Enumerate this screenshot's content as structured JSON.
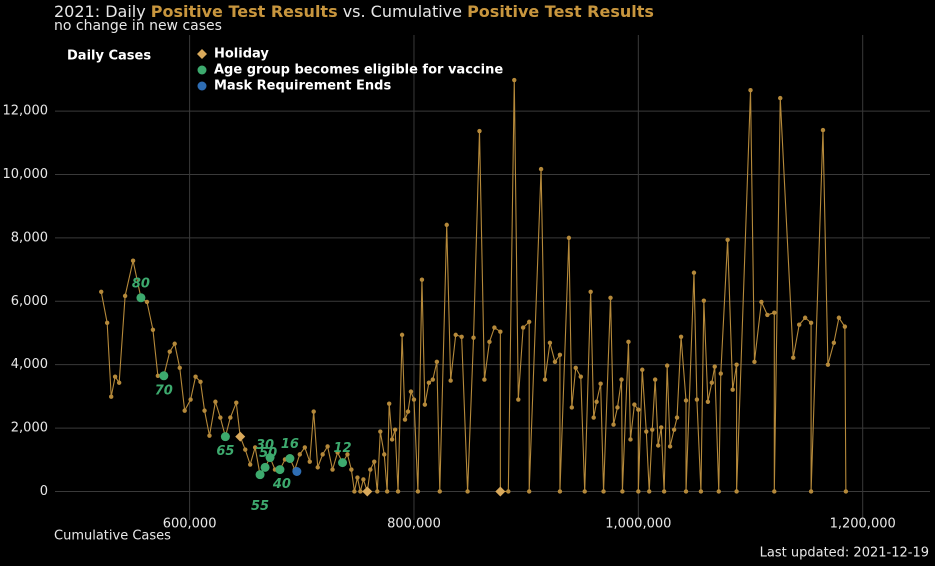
{
  "chart_data": {
    "type": "line",
    "title_parts": [
      "2021: Daily ",
      "Positive Test Results",
      " vs. Cumulative ",
      "Positive Test Results"
    ],
    "title_highlight_color": "#c8963e",
    "subtitle": "no change in new cases",
    "x_label": "Cumulative Cases",
    "footer": "Last updated: 2021-12-19",
    "xlim": [
      480000,
      1260000
    ],
    "ylim": [
      -900,
      14400
    ],
    "xticks": [
      {
        "value": 600000,
        "label": "600,000"
      },
      {
        "value": 800000,
        "label": "800,000"
      },
      {
        "value": 1000000,
        "label": "1,000,000"
      },
      {
        "value": 1200000,
        "label": "1,200,000"
      }
    ],
    "yticks": [
      0,
      {
        "value": 2000,
        "label": "2,000"
      },
      {
        "value": 4000,
        "label": "4,000"
      },
      {
        "value": 6000,
        "label": "6,000"
      },
      {
        "value": 8000,
        "label": "8,000"
      },
      {
        "value": 10000,
        "label": "10,000"
      },
      {
        "value": 12000,
        "label": "12,000"
      }
    ],
    "grid": true,
    "series": [
      {
        "name": "Daily Cases",
        "color": "#b5893a",
        "x": [
          521200,
          526500,
          530100,
          533600,
          537200,
          542500,
          549600,
          556600,
          562000,
          567300,
          571700,
          577000,
          582300,
          586700,
          591200,
          595600,
          600900,
          605300,
          609700,
          613300,
          617700,
          623000,
          627400,
          631900,
          636300,
          641600,
          645100,
          649600,
          654000,
          658400,
          662800,
          667300,
          671700,
          676100,
          680500,
          685000,
          689400,
          693800,
          698200,
          702700,
          707100,
          710600,
          714200,
          718600,
          723000,
          727400,
          731900,
          736300,
          740700,
          744200,
          746900,
          749600,
          752200,
          754900,
          758400,
          761100,
          764600,
          767300,
          770000,
          773500,
          776100,
          777900,
          780500,
          783200,
          785800,
          789400,
          792000,
          794700,
          797300,
          800000,
          803500,
          807100,
          809700,
          813300,
          816800,
          820400,
          823000,
          829200,
          832700,
          837200,
          842500,
          847800,
          853100,
          858400,
          862800,
          867300,
          871700,
          877000,
          877000,
          884100,
          889400,
          893000,
          897300,
          902700,
          902700,
          913300,
          916800,
          921200,
          925700,
          930100,
          930100,
          938100,
          940700,
          944200,
          948700,
          952200,
          957500,
          960200,
          962800,
          966400,
          969000,
          975200,
          977900,
          981400,
          985000,
          985800,
          991200,
          993000,
          996500,
          1000000,
          1000000,
          1003500,
          1007100,
          1009700,
          1012400,
          1015000,
          1017700,
          1020400,
          1023000,
          1025700,
          1028300,
          1031900,
          1034500,
          1038100,
          1042500,
          1042500,
          1049600,
          1052200,
          1055800,
          1058400,
          1062000,
          1065500,
          1068100,
          1071700,
          1073500,
          1079600,
          1084100,
          1087600,
          1087600,
          1100000,
          1103500,
          1109700,
          1115000,
          1121200,
          1121200,
          1126500,
          1138100,
          1143400,
          1148700,
          1154000,
          1154000,
          1164600,
          1169000,
          1174300,
          1178800,
          1184100,
          1185000
        ],
        "values": [
          6300,
          5320,
          2990,
          3620,
          3430,
          6170,
          7280,
          6110,
          5980,
          5100,
          3650,
          3650,
          4410,
          4660,
          3900,
          2550,
          2900,
          3620,
          3460,
          2550,
          1760,
          2830,
          2330,
          1730,
          2330,
          2800,
          1730,
          1320,
          850,
          1390,
          530,
          760,
          1070,
          690,
          690,
          1010,
          1040,
          690,
          1170,
          1390,
          940,
          2520,
          760,
          1170,
          1420,
          690,
          1230,
          910,
          1170,
          690,
          0,
          440,
          0,
          380,
          0,
          690,
          940,
          0,
          1890,
          1170,
          0,
          2770,
          1640,
          1950,
          0,
          4940,
          2270,
          2520,
          3150,
          2900,
          0,
          6680,
          2740,
          3430,
          3530,
          4090,
          0,
          8410,
          3500,
          4940,
          4880,
          0,
          4850,
          11370,
          3530,
          4720,
          5170,
          5040,
          0,
          0,
          12980,
          2900,
          5170,
          5350,
          0,
          10170,
          3530,
          4690,
          4090,
          4310,
          0,
          8000,
          2650,
          3900,
          3620,
          0,
          6300,
          2330,
          2830,
          3400,
          0,
          6110,
          2110,
          2650,
          3530,
          0,
          4720,
          1640,
          2740,
          2580,
          0,
          3840,
          1890,
          0,
          1950,
          3530,
          1450,
          2020,
          0,
          3970,
          1420,
          1950,
          2330,
          4880,
          2870,
          0,
          6900,
          2900,
          0,
          6020,
          2830,
          3430,
          3940,
          0,
          3720,
          7940,
          3210,
          4000,
          0,
          12660,
          4090,
          5980,
          5570,
          5640,
          0,
          12410,
          4220,
          5260,
          5480,
          5320,
          0,
          11400,
          4000,
          4690,
          5480,
          5200,
          0
        ]
      }
    ],
    "markers": [
      {
        "name": "Holiday",
        "color": "#d9a95b",
        "shape": "diamond",
        "x": [
          645100,
          758400,
          877000
        ],
        "values": [
          1730,
          0,
          0
        ]
      },
      {
        "name": "Age group becomes eligible for vaccine",
        "color": "#3daa6e",
        "shape": "circle",
        "x": [
          556600,
          577000,
          631900,
          662800,
          667300,
          671700,
          680500,
          689400,
          736300
        ],
        "values": [
          6110,
          3650,
          1730,
          530,
          760,
          1070,
          690,
          1040,
          910
        ],
        "labels": [
          "80",
          "70",
          "65",
          "55",
          "50",
          "30",
          "40",
          "16",
          "12"
        ]
      },
      {
        "name": "Mask Requirement Ends",
        "color": "#2e6db4",
        "shape": "circle",
        "x": [
          695600
        ],
        "values": [
          630
        ]
      }
    ]
  }
}
